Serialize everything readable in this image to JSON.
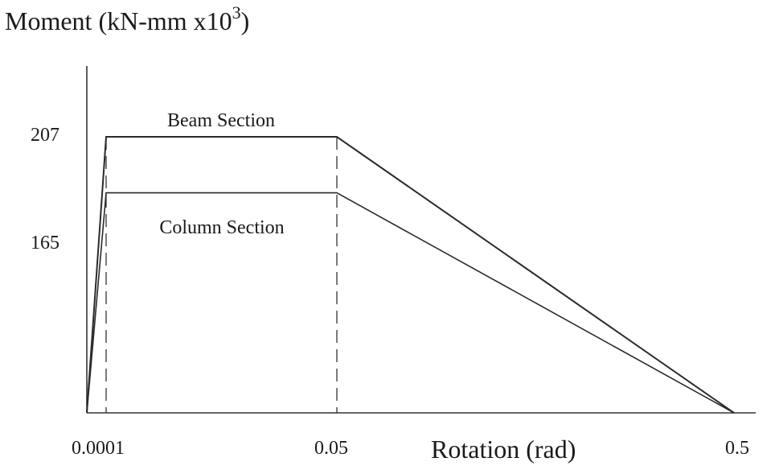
{
  "chart_data": {
    "type": "line",
    "title": "",
    "ylabel_text": "Moment (kN-mm x10",
    "ylabel_exp": "3",
    "ylabel_close": ")",
    "xlabel": "Rotation (rad)",
    "x_tick_labels": [
      "0.0001",
      "0.05",
      "0.5"
    ],
    "y_tick_labels": [
      "207",
      "165"
    ],
    "x": [
      0,
      0.0001,
      0.05,
      0.5
    ],
    "series": [
      {
        "name": "Beam Section",
        "values": [
          0,
          207,
          207,
          0
        ]
      },
      {
        "name": "Column Section",
        "values": [
          0,
          165,
          165,
          0
        ]
      }
    ],
    "y_ticks": [
      207,
      165
    ],
    "x_ticks": [
      0.0001,
      0.05,
      0.5
    ],
    "grid": false,
    "legend": "labels-on-lines"
  }
}
